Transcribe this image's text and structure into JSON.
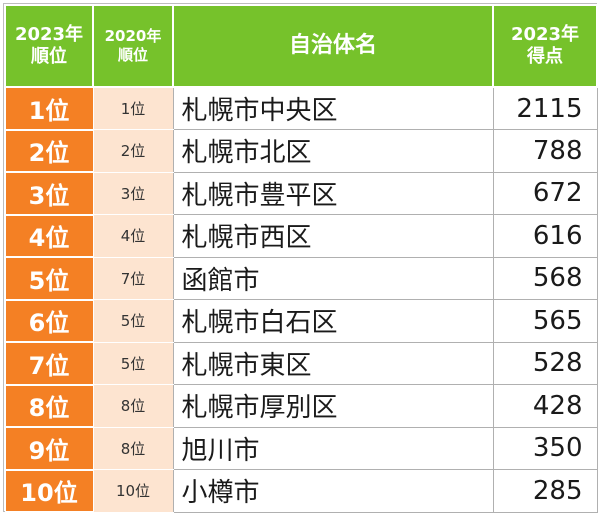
{
  "header": {
    "rank_2023": "2023年\n順位",
    "rank_2020": "2020年\n順位",
    "municipality": "自治体名",
    "score_2023": "2023年\n得点"
  },
  "rows": [
    {
      "rank": "1位",
      "prev": "1位",
      "name": "札幌市中央区",
      "score": "2115"
    },
    {
      "rank": "2位",
      "prev": "2位",
      "name": "札幌市北区",
      "score": "788"
    },
    {
      "rank": "3位",
      "prev": "3位",
      "name": "札幌市豊平区",
      "score": "672"
    },
    {
      "rank": "4位",
      "prev": "4位",
      "name": "札幌市西区",
      "score": "616"
    },
    {
      "rank": "5位",
      "prev": "7位",
      "name": "函館市",
      "score": "568"
    },
    {
      "rank": "6位",
      "prev": "5位",
      "name": "札幌市白石区",
      "score": "565"
    },
    {
      "rank": "7位",
      "prev": "5位",
      "name": "札幌市東区",
      "score": "528"
    },
    {
      "rank": "8位",
      "prev": "8位",
      "name": "札幌市厚別区",
      "score": "428"
    },
    {
      "rank": "9位",
      "prev": "8位",
      "name": "旭川市",
      "score": "350"
    },
    {
      "rank": "10位",
      "prev": "10位",
      "name": "小樽市",
      "score": "285"
    }
  ],
  "colors": {
    "header_bg": "#76c22b",
    "rank_bg": "#f48024",
    "prev_bg": "#fde4d0"
  }
}
